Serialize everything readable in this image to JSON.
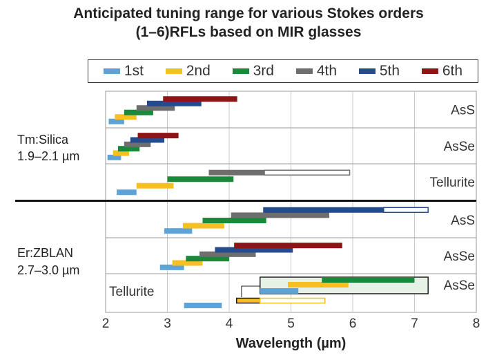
{
  "chart_data": {
    "type": "bar",
    "title_line1": "Anticipated tuning range for various Stokes orders",
    "title_line2": "(1–6)RFLs based on MIR glasses",
    "xlabel": "Wavelength (µm)",
    "xlim": [
      2,
      8
    ],
    "xticks": [
      "2",
      "3",
      "4",
      "5",
      "6",
      "7",
      "8"
    ],
    "legend": [
      {
        "name": "1st",
        "color": "#5fa3d6"
      },
      {
        "name": "2nd",
        "color": "#f6bf22"
      },
      {
        "name": "3rd",
        "color": "#1a8a3a"
      },
      {
        "name": "4th",
        "color": "#6e6e6e"
      },
      {
        "name": "5th",
        "color": "#234b8e"
      },
      {
        "name": "6th",
        "color": "#8e1416"
      }
    ],
    "groups": [
      {
        "label_line1": "Tm:Silica",
        "label_line2": "1.9–2.1 µm"
      },
      {
        "label_line1": "Er:ZBLAN",
        "label_line2": "2.7–3.0 µm"
      }
    ],
    "panels": [
      {
        "group": 0,
        "glass": "AsS",
        "bars": [
          {
            "order": 1,
            "start": 2.05,
            "end": 2.3
          },
          {
            "order": 2,
            "start": 2.15,
            "end": 2.5
          },
          {
            "order": 3,
            "start": 2.3,
            "end": 2.77
          },
          {
            "order": 4,
            "start": 2.5,
            "end": 3.12
          },
          {
            "order": 5,
            "start": 2.67,
            "end": 3.55
          },
          {
            "order": 6,
            "start": 2.93,
            "end": 4.13
          }
        ]
      },
      {
        "group": 0,
        "glass": "AsSe",
        "bars": [
          {
            "order": 1,
            "start": 2.03,
            "end": 2.25
          },
          {
            "order": 2,
            "start": 2.12,
            "end": 2.38
          },
          {
            "order": 3,
            "start": 2.2,
            "end": 2.55
          },
          {
            "order": 4,
            "start": 2.3,
            "end": 2.73
          },
          {
            "order": 5,
            "start": 2.4,
            "end": 2.95
          },
          {
            "order": 6,
            "start": 2.52,
            "end": 3.18
          }
        ]
      },
      {
        "group": 0,
        "glass": "Tellurite",
        "bars": [
          {
            "order": 1,
            "start": 2.18,
            "end": 2.5
          },
          {
            "order": 2,
            "start": 2.5,
            "end": 3.1
          },
          {
            "order": 3,
            "start": 3.0,
            "end": 4.07
          },
          {
            "order": 4,
            "start": 3.67,
            "end": 4.57
          },
          {
            "order": 4,
            "start": 4.57,
            "end": 5.95,
            "outline": true
          }
        ]
      },
      {
        "group": 1,
        "glass": "AsS",
        "bars": [
          {
            "order": 1,
            "start": 2.95,
            "end": 3.4
          },
          {
            "order": 2,
            "start": 3.25,
            "end": 3.92
          },
          {
            "order": 3,
            "start": 3.57,
            "end": 4.6
          },
          {
            "order": 4,
            "start": 4.03,
            "end": 5.62
          },
          {
            "order": 5,
            "start": 4.55,
            "end": 6.5
          },
          {
            "order": 5,
            "start": 6.5,
            "end": 7.22,
            "outline": true
          }
        ]
      },
      {
        "group": 1,
        "glass": "AsSe",
        "bars": [
          {
            "order": 1,
            "start": 2.88,
            "end": 3.27
          },
          {
            "order": 2,
            "start": 3.08,
            "end": 3.57
          },
          {
            "order": 3,
            "start": 3.3,
            "end": 4.0
          },
          {
            "order": 4,
            "start": 3.52,
            "end": 4.43
          },
          {
            "order": 5,
            "start": 3.77,
            "end": 5.03
          },
          {
            "order": 6,
            "start": 4.08,
            "end": 5.83
          }
        ]
      },
      {
        "group": 1,
        "glass": "Tellurite",
        "inset_glass": "AsSe",
        "bars": [
          {
            "order": 1,
            "start": 3.27,
            "end": 3.88
          },
          {
            "order": 2,
            "start": 4.12,
            "end": 4.5,
            "bordered": true
          },
          {
            "order": 2,
            "start": 4.5,
            "end": 5.55,
            "outline": true
          },
          {
            "order": 1,
            "start": 4.5,
            "end": 5.12
          },
          {
            "order": 2,
            "start": 4.95,
            "end": 5.93
          },
          {
            "order": 3,
            "start": 5.5,
            "end": 7.0
          }
        ]
      }
    ]
  }
}
